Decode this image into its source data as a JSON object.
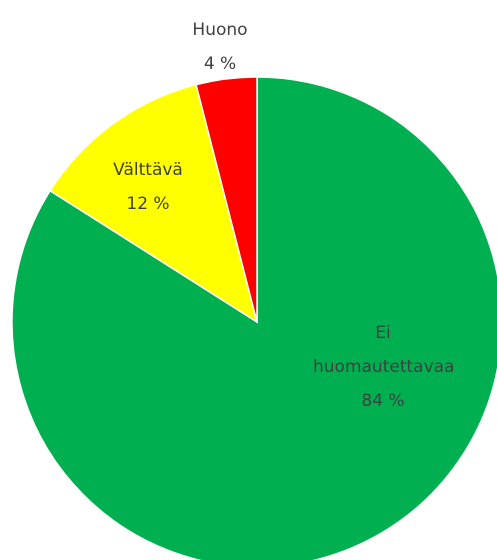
{
  "chart_data": {
    "type": "pie",
    "categories": [
      "Ei huomautettavaa",
      "Välttävä",
      "Huono"
    ],
    "values": [
      84,
      12,
      4
    ],
    "value_labels": [
      "84 %",
      "12 %",
      "4 %"
    ],
    "colors": [
      "#00b050",
      "#ffff00",
      "#ff0000"
    ]
  }
}
